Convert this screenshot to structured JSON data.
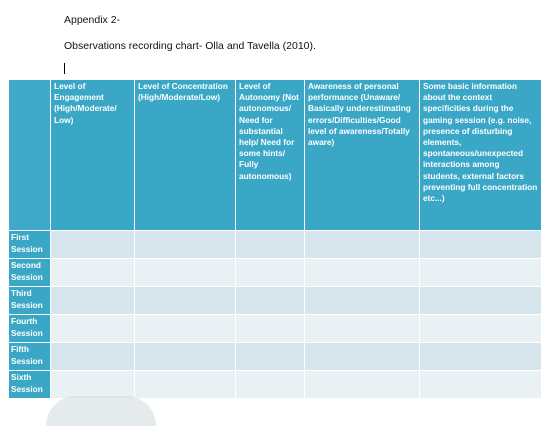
{
  "document": {
    "appendix": "Appendix 2-",
    "subtitle": "Observations recording chart- Olla and Tavella (2010)."
  },
  "table": {
    "headers": [
      "",
      "Level of Engagement (High/Moderate/ Low)",
      "Level of Concentration (High/Moderate/Low)",
      "Level of Autonomy (Not autonomous/ Need for substantial help/ Need for some hints/ Fully autonomous)",
      "Awareness of personal performance (Unaware/ Basically underestimating errors/Difficulties/Good level of awareness/Totally aware)",
      "Some basic information about the context specificities during the gaming session (e.g. noise, presence of disturbing elements, spontaneous/unexpected interactions among students, external factors preventing full concentration etc...)"
    ],
    "rows": [
      "First\nSession",
      "Second\nSession",
      "Third\nSession",
      "Fourth\nSession",
      "Fifth\nSession",
      "Sixth\nSession"
    ]
  }
}
